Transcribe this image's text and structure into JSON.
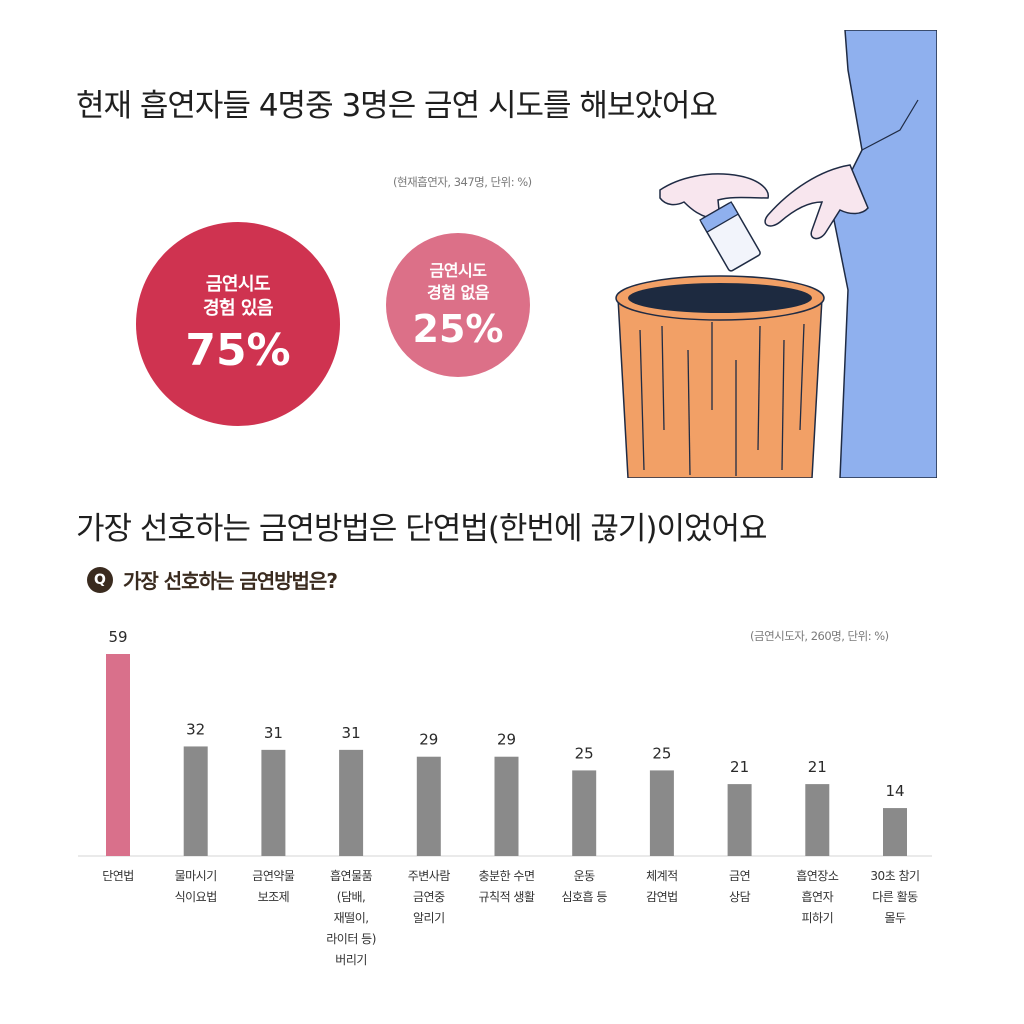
{
  "header": {
    "headline1": "현재 흡연자들 4명중 3명은 금연 시도를 해보았어요",
    "note1": "(현재흡연자, 347명, 단위: %)"
  },
  "circles": {
    "yes": {
      "label1": "금연시도",
      "label2": "경험 있음",
      "percent": "75%",
      "value": 75,
      "color": "#cf3350"
    },
    "no": {
      "label1": "금연시도",
      "label2": "경험 없음",
      "percent": "25%",
      "value": 25,
      "color": "#dc7088"
    }
  },
  "illustration": {
    "icon": "hand-dropping-cigarette-pack-into-trash-can"
  },
  "section2": {
    "headline2": "가장 선호하는 금연방법은 단연법(한번에 끊기)이었어요",
    "q_badge": "Q",
    "question": "가장 선호하는 금연방법은?",
    "note2": "(금연시도자, 260명, 단위: %)"
  },
  "chart_data": {
    "type": "bar",
    "categories": [
      "단연법",
      "물마시기\n식이요법",
      "금연약물\n보조제",
      "흡연물품\n(담배,\n재떨이,\n라이터 등)\n버리기",
      "주변사람\n금연중\n알리기",
      "충분한 수면\n규칙적 생활",
      "운동\n심호흡 등",
      "체계적\n감연법",
      "금연\n상담",
      "흡연장소\n흡연자\n피하기",
      "30초 참기\n다른 활동\n몰두"
    ],
    "values": [
      59,
      32,
      31,
      31,
      29,
      29,
      25,
      25,
      21,
      21,
      14
    ],
    "highlight_color": "#d9708b",
    "bar_color": "#8a8a8a",
    "ylim": [
      0,
      59
    ]
  }
}
